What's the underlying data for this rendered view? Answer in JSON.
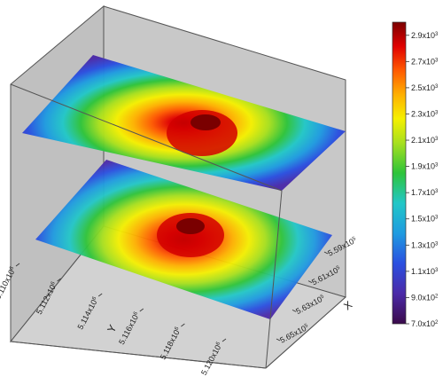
{
  "chart_data": {
    "type": "3d-surface",
    "title": "",
    "xlabel": "X",
    "ylabel": "Y",
    "layers": [
      "upper",
      "lower"
    ],
    "y_axis": {
      "ticks": [
        {
          "label": "5.110x10",
          "exp": "6"
        },
        {
          "label": "5.112x10",
          "exp": "6"
        },
        {
          "label": "5.114x10",
          "exp": "6"
        },
        {
          "label": "5.116x10",
          "exp": "6"
        },
        {
          "label": "5.118x10",
          "exp": "6"
        },
        {
          "label": "5.120x10",
          "exp": "6"
        }
      ]
    },
    "x_axis": {
      "ticks": [
        {
          "label": "5.59x10",
          "exp": "5"
        },
        {
          "label": "5.61x10",
          "exp": "5"
        },
        {
          "label": "5.63x10",
          "exp": "5"
        },
        {
          "label": "5.65x10",
          "exp": "5"
        }
      ]
    },
    "colorbar": {
      "range": [
        700,
        3000
      ],
      "ticks": [
        {
          "label": "7.0x10",
          "exp": "2",
          "value": 700
        },
        {
          "label": "9.0x10",
          "exp": "2",
          "value": 900
        },
        {
          "label": "1.1x10",
          "exp": "3",
          "value": 1100
        },
        {
          "label": "1.3x10",
          "exp": "3",
          "value": 1300
        },
        {
          "label": "1.5x10",
          "exp": "3",
          "value": 1500
        },
        {
          "label": "1.7x10",
          "exp": "3",
          "value": 1700
        },
        {
          "label": "1.9x10",
          "exp": "3",
          "value": 1900
        },
        {
          "label": "2.1x10",
          "exp": "3",
          "value": 2100
        },
        {
          "label": "2.3x10",
          "exp": "3",
          "value": 2300
        },
        {
          "label": "2.5x10",
          "exp": "3",
          "value": 2500
        },
        {
          "label": "2.7x10",
          "exp": "3",
          "value": 2700
        },
        {
          "label": "2.9x10",
          "exp": "3",
          "value": 2900
        }
      ],
      "colors": [
        "#3a0a4a",
        "#4b2aa8",
        "#2a4fe0",
        "#1f9be0",
        "#22c7c7",
        "#2ec43a",
        "#a8e01e",
        "#f5f000",
        "#ffb000",
        "#ff5a00",
        "#e00000",
        "#7a0000"
      ]
    },
    "colors": {
      "panel_back": "#c8c8c8",
      "panel_side": "#c0c0c0",
      "floor": "#d2d2d2",
      "frame": "#555555"
    }
  }
}
